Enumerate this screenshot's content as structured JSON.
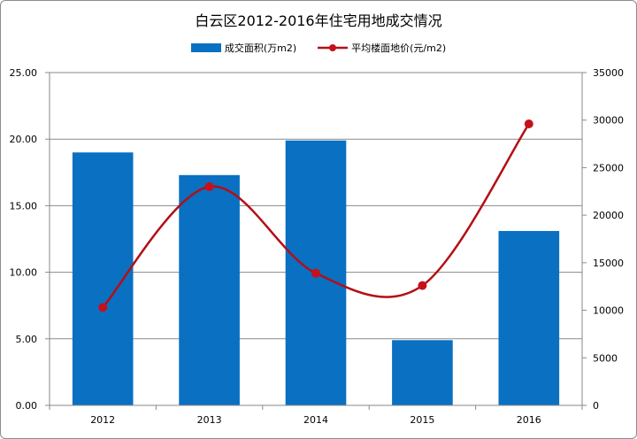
{
  "chart_data": {
    "type": "bar",
    "title": "白云区2012-2016年住宅用地成交情况",
    "categories": [
      "2012",
      "2013",
      "2014",
      "2015",
      "2016"
    ],
    "series": [
      {
        "name": "成交面积(万m2)",
        "type": "bar",
        "axis": "left",
        "color": "#0a70c2",
        "values": [
          19.0,
          17.3,
          19.9,
          4.9,
          13.1
        ]
      },
      {
        "name": "平均楼面地价(元/m2)",
        "type": "line",
        "axis": "right",
        "color": "#b30f15",
        "marker_color": "#c8101a",
        "values": [
          10300,
          23000,
          13900,
          12600,
          29600
        ]
      }
    ],
    "y_left": {
      "ylim": [
        0,
        25
      ],
      "ticks": [
        "0.00",
        "5.00",
        "10.00",
        "15.00",
        "20.00",
        "25.00"
      ]
    },
    "y_right": {
      "ylim": [
        0,
        35000
      ],
      "ticks": [
        "0",
        "5000",
        "10000",
        "15000",
        "20000",
        "25000",
        "30000",
        "35000"
      ]
    },
    "grid": true,
    "legend_position": "top"
  }
}
